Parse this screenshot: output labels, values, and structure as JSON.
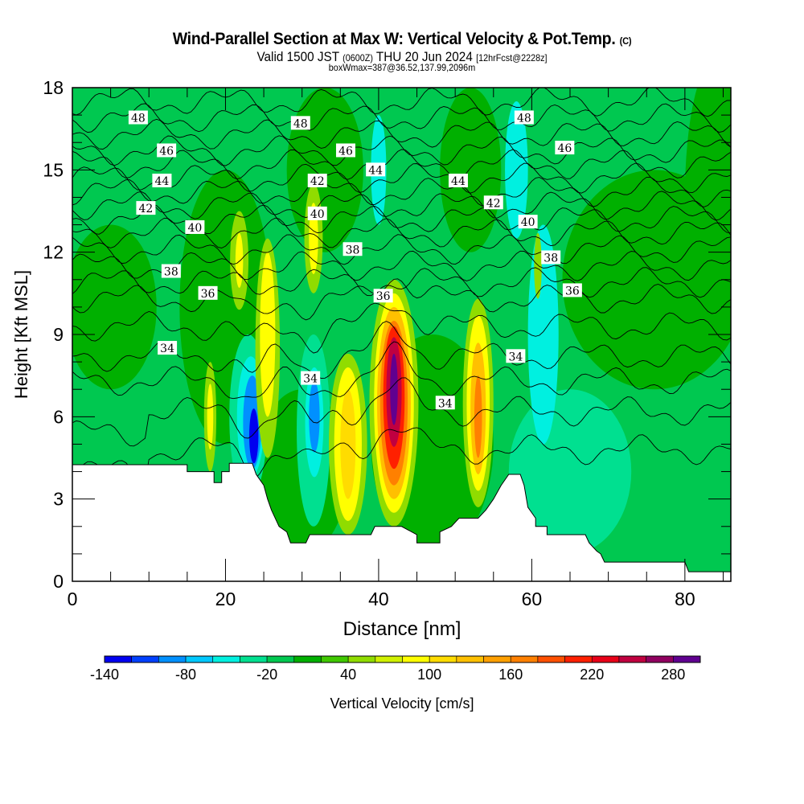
{
  "header": {
    "title": "Wind-Parallel Section at Max W: Vertical Velocity & Pot.Temp.",
    "title_mark": "(C)",
    "subtitle_pre": "Valid 1500 JST",
    "subtitle_utc": "(0600Z)",
    "subtitle_date": "THU 20 Jun 2024",
    "subtitle_fcst": "[12hrFcst@2228z]",
    "box_info": "boxWmax=387@36.52,137.99,2096m"
  },
  "chart_data": {
    "type": "heatmap",
    "title": "Wind-Parallel Section at Max W: Vertical Velocity & Pot.Temp.",
    "xlabel": "Distance [nm]",
    "ylabel": "Height [Kft MSL]",
    "xlim": [
      0,
      86
    ],
    "ylim": [
      0,
      18
    ],
    "xticks": [
      "0",
      "20",
      "40",
      "60",
      "80"
    ],
    "xtick_values": [
      0,
      20,
      40,
      60,
      80
    ],
    "yticks": [
      "0",
      "3",
      "6",
      "9",
      "12",
      "15",
      "18"
    ],
    "ytick_values": [
      0,
      3,
      6,
      9,
      12,
      15,
      18
    ],
    "colorbar": {
      "label": "Vertical Velocity [cm/s]",
      "min": -140,
      "max": 300,
      "step": 20,
      "tick_labels": [
        "-140",
        "-80",
        "-20",
        "40",
        "100",
        "160",
        "220",
        "280"
      ],
      "tick_values": [
        -140,
        -80,
        -20,
        40,
        100,
        160,
        220,
        280
      ],
      "colors": [
        "#0000f0",
        "#0040ff",
        "#0090ff",
        "#00c8ff",
        "#00f0e0",
        "#00e090",
        "#00c850",
        "#00b000",
        "#40c800",
        "#90dc00",
        "#d0f000",
        "#ffff00",
        "#ffdc00",
        "#ffc000",
        "#ffa000",
        "#ff8000",
        "#ff5000",
        "#ff2000",
        "#e80018",
        "#c00040",
        "#900060",
        "#600090"
      ]
    },
    "background_value": -10,
    "w_features": [
      {
        "x": 30,
        "y": 4,
        "rx": 6,
        "ry": 3,
        "v": 10
      },
      {
        "x": 47,
        "y": 5,
        "rx": 8,
        "ry": 4,
        "v": 10
      },
      {
        "x": 20,
        "y": 10,
        "rx": 6,
        "ry": 5,
        "v": 10
      },
      {
        "x": 33,
        "y": 15,
        "rx": 5,
        "ry": 3,
        "v": 10
      },
      {
        "x": 76,
        "y": 11,
        "rx": 12,
        "ry": 4,
        "v": 10
      },
      {
        "x": 84,
        "y": 14,
        "rx": 4,
        "ry": 5,
        "v": 10
      },
      {
        "x": 5,
        "y": 10,
        "rx": 6,
        "ry": 3,
        "v": 10
      },
      {
        "x": 52,
        "y": 15,
        "rx": 4,
        "ry": 3,
        "v": 10
      },
      {
        "x": 65,
        "y": 4,
        "rx": 8,
        "ry": 3,
        "v": -30
      },
      {
        "x": 61.5,
        "y": 9,
        "rx": 2,
        "ry": 4,
        "v": -50
      },
      {
        "x": 58,
        "y": 15,
        "rx": 1.5,
        "ry": 2.5,
        "v": -50
      },
      {
        "x": 40,
        "y": 15,
        "rx": 1,
        "ry": 2,
        "v": -50
      },
      {
        "x": 23,
        "y": 6,
        "rx": 2.5,
        "ry": 3,
        "v": -30
      },
      {
        "x": 23.3,
        "y": 6,
        "rx": 1.8,
        "ry": 2.2,
        "v": -50
      },
      {
        "x": 23.5,
        "y": 5.8,
        "rx": 1.2,
        "ry": 1.7,
        "v": -90
      },
      {
        "x": 23.7,
        "y": 5.3,
        "rx": 0.6,
        "ry": 1,
        "v": -130
      },
      {
        "x": 31.5,
        "y": 5.5,
        "rx": 2.2,
        "ry": 3.5,
        "v": -30
      },
      {
        "x": 31.6,
        "y": 5.8,
        "rx": 1.2,
        "ry": 2,
        "v": -60
      },
      {
        "x": 31.6,
        "y": 6,
        "rx": 0.7,
        "ry": 1.3,
        "v": -90
      },
      {
        "x": 25.5,
        "y": 8.5,
        "rx": 1.6,
        "ry": 4,
        "v": 50
      },
      {
        "x": 25.5,
        "y": 9,
        "rx": 1,
        "ry": 3,
        "v": 90
      },
      {
        "x": 18,
        "y": 6,
        "rx": 0.8,
        "ry": 2,
        "v": 50
      },
      {
        "x": 18,
        "y": 6,
        "rx": 0.4,
        "ry": 1.2,
        "v": 90
      },
      {
        "x": 31.5,
        "y": 12.5,
        "rx": 1.2,
        "ry": 2,
        "v": 50
      },
      {
        "x": 31.5,
        "y": 12.5,
        "rx": 0.6,
        "ry": 1.3,
        "v": 90
      },
      {
        "x": 21.8,
        "y": 11.7,
        "rx": 1.2,
        "ry": 1.8,
        "v": 50
      },
      {
        "x": 21.8,
        "y": 11.7,
        "rx": 0.5,
        "ry": 1,
        "v": 90
      },
      {
        "x": 36,
        "y": 5,
        "rx": 2.5,
        "ry": 3.3,
        "v": 50
      },
      {
        "x": 36,
        "y": 5,
        "rx": 1.8,
        "ry": 2.8,
        "v": 90
      },
      {
        "x": 36,
        "y": 5,
        "rx": 1,
        "ry": 2,
        "v": 110
      },
      {
        "x": 42,
        "y": 6.5,
        "rx": 3.2,
        "ry": 4.5,
        "v": 50
      },
      {
        "x": 42,
        "y": 6.5,
        "rx": 2.6,
        "ry": 4,
        "v": 90
      },
      {
        "x": 42,
        "y": 6.5,
        "rx": 2.2,
        "ry": 3.5,
        "v": 130
      },
      {
        "x": 42,
        "y": 6.5,
        "rx": 1.8,
        "ry": 3,
        "v": 170
      },
      {
        "x": 42,
        "y": 6.7,
        "rx": 1.4,
        "ry": 2.6,
        "v": 210
      },
      {
        "x": 42,
        "y": 6.9,
        "rx": 1,
        "ry": 2,
        "v": 250
      },
      {
        "x": 42,
        "y": 7,
        "rx": 0.5,
        "ry": 1.3,
        "v": 290
      },
      {
        "x": 53,
        "y": 6.5,
        "rx": 2,
        "ry": 3.8,
        "v": 50
      },
      {
        "x": 53,
        "y": 6.5,
        "rx": 1.5,
        "ry": 3.2,
        "v": 90
      },
      {
        "x": 53,
        "y": 6.3,
        "rx": 1,
        "ry": 2.4,
        "v": 130
      },
      {
        "x": 53,
        "y": 6,
        "rx": 0.5,
        "ry": 1.5,
        "v": 170
      },
      {
        "x": 60.8,
        "y": 11.5,
        "rx": 0.5,
        "ry": 1.2,
        "v": 50
      }
    ],
    "terrain": [
      [
        0,
        4.25
      ],
      [
        15,
        4.25
      ],
      [
        15,
        4.0
      ],
      [
        18.5,
        4.0
      ],
      [
        18.5,
        3.6
      ],
      [
        19.5,
        3.6
      ],
      [
        19.5,
        4.0
      ],
      [
        20.5,
        4.0
      ],
      [
        20.5,
        4.3
      ],
      [
        23.5,
        4.3
      ],
      [
        24,
        3.9
      ],
      [
        25,
        3.5
      ],
      [
        25.5,
        3.0
      ],
      [
        26,
        2.6
      ],
      [
        27,
        2.0
      ],
      [
        28,
        1.8
      ],
      [
        28.5,
        1.4
      ],
      [
        30.5,
        1.4
      ],
      [
        31,
        1.7
      ],
      [
        39,
        1.7
      ],
      [
        39.5,
        2.0
      ],
      [
        43,
        2.0
      ],
      [
        45,
        1.7
      ],
      [
        45,
        1.4
      ],
      [
        48,
        1.4
      ],
      [
        48,
        1.8
      ],
      [
        49.5,
        2.0
      ],
      [
        50.5,
        2.3
      ],
      [
        53,
        2.3
      ],
      [
        54,
        2.6
      ],
      [
        55,
        3.0
      ],
      [
        56,
        3.5
      ],
      [
        57,
        3.9
      ],
      [
        58.5,
        3.9
      ],
      [
        59,
        3.5
      ],
      [
        59.5,
        2.7
      ],
      [
        60.5,
        2.3
      ],
      [
        60.5,
        2.0
      ],
      [
        62,
        2.0
      ],
      [
        62,
        1.7
      ],
      [
        67,
        1.7
      ],
      [
        67.5,
        1.4
      ],
      [
        68.5,
        1.1
      ],
      [
        69,
        1.0
      ],
      [
        69.5,
        0.7
      ],
      [
        80,
        0.7
      ],
      [
        80.5,
        0.35
      ],
      [
        86,
        0.35
      ]
    ],
    "theta_levels": [
      {
        "level": 31,
        "base": 4.8
      },
      {
        "level": 32,
        "base": 6.2
      },
      {
        "level": 33,
        "base": 7.3
      },
      {
        "level": 34,
        "base": 8.2
      },
      {
        "level": 35,
        "base": 9.3
      },
      {
        "level": 36,
        "base": 10.3
      },
      {
        "level": 37,
        "base": 10.9
      },
      {
        "level": 38,
        "base": 11.5
      },
      {
        "level": 39,
        "base": 12.1
      },
      {
        "level": 40,
        "base": 12.7
      },
      {
        "level": 41,
        "base": 13.2
      },
      {
        "level": 42,
        "base": 13.7
      },
      {
        "level": 43,
        "base": 14.2
      },
      {
        "level": 44,
        "base": 14.7
      },
      {
        "level": 45,
        "base": 15.2
      },
      {
        "level": 46,
        "base": 15.7
      },
      {
        "level": 47,
        "base": 16.3
      },
      {
        "level": 48,
        "base": 16.9
      },
      {
        "level": 49,
        "base": 17.5
      }
    ],
    "contour_labels": [
      {
        "x": 8.6,
        "y": 16.9,
        "text": "48"
      },
      {
        "x": 29.8,
        "y": 16.7,
        "text": "48"
      },
      {
        "x": 59.0,
        "y": 16.9,
        "text": "48"
      },
      {
        "x": 12.3,
        "y": 15.7,
        "text": "46"
      },
      {
        "x": 35.7,
        "y": 15.7,
        "text": "46"
      },
      {
        "x": 64.3,
        "y": 15.8,
        "text": "46"
      },
      {
        "x": 11.7,
        "y": 14.6,
        "text": "44"
      },
      {
        "x": 39.6,
        "y": 15.0,
        "text": "44"
      },
      {
        "x": 50.4,
        "y": 14.6,
        "text": "44"
      },
      {
        "x": 9.6,
        "y": 13.6,
        "text": "42"
      },
      {
        "x": 32.0,
        "y": 14.6,
        "text": "42"
      },
      {
        "x": 55.0,
        "y": 13.8,
        "text": "42"
      },
      {
        "x": 16.0,
        "y": 12.9,
        "text": "40"
      },
      {
        "x": 32.0,
        "y": 13.4,
        "text": "40"
      },
      {
        "x": 59.5,
        "y": 13.1,
        "text": "40"
      },
      {
        "x": 12.9,
        "y": 11.3,
        "text": "38"
      },
      {
        "x": 36.6,
        "y": 12.1,
        "text": "38"
      },
      {
        "x": 62.5,
        "y": 11.8,
        "text": "38"
      },
      {
        "x": 17.7,
        "y": 10.5,
        "text": "36"
      },
      {
        "x": 40.6,
        "y": 10.4,
        "text": "36"
      },
      {
        "x": 65.3,
        "y": 10.6,
        "text": "36"
      },
      {
        "x": 12.4,
        "y": 8.5,
        "text": "34"
      },
      {
        "x": 31.1,
        "y": 7.4,
        "text": "34"
      },
      {
        "x": 48.7,
        "y": 6.5,
        "text": "34"
      },
      {
        "x": 57.9,
        "y": 8.2,
        "text": "34"
      }
    ]
  }
}
